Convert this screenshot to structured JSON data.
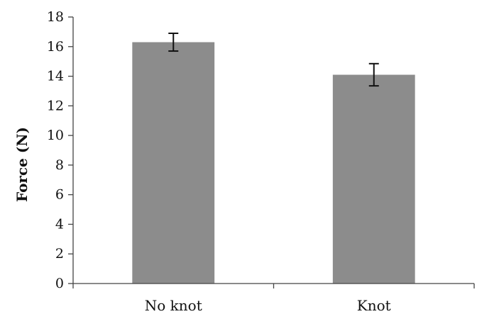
{
  "chart_data": {
    "type": "bar",
    "categories": [
      "No knot",
      "Knot"
    ],
    "values": [
      16.3,
      14.1
    ],
    "error": [
      0.6,
      0.75
    ],
    "title": "",
    "xlabel": "",
    "ylabel": "Force (N)",
    "ylim": [
      0,
      18
    ],
    "yticks": [
      0,
      2,
      4,
      6,
      8,
      10,
      12,
      14,
      16,
      18
    ],
    "grid": false,
    "legend": "none",
    "bar_color": "#8c8c8c"
  }
}
